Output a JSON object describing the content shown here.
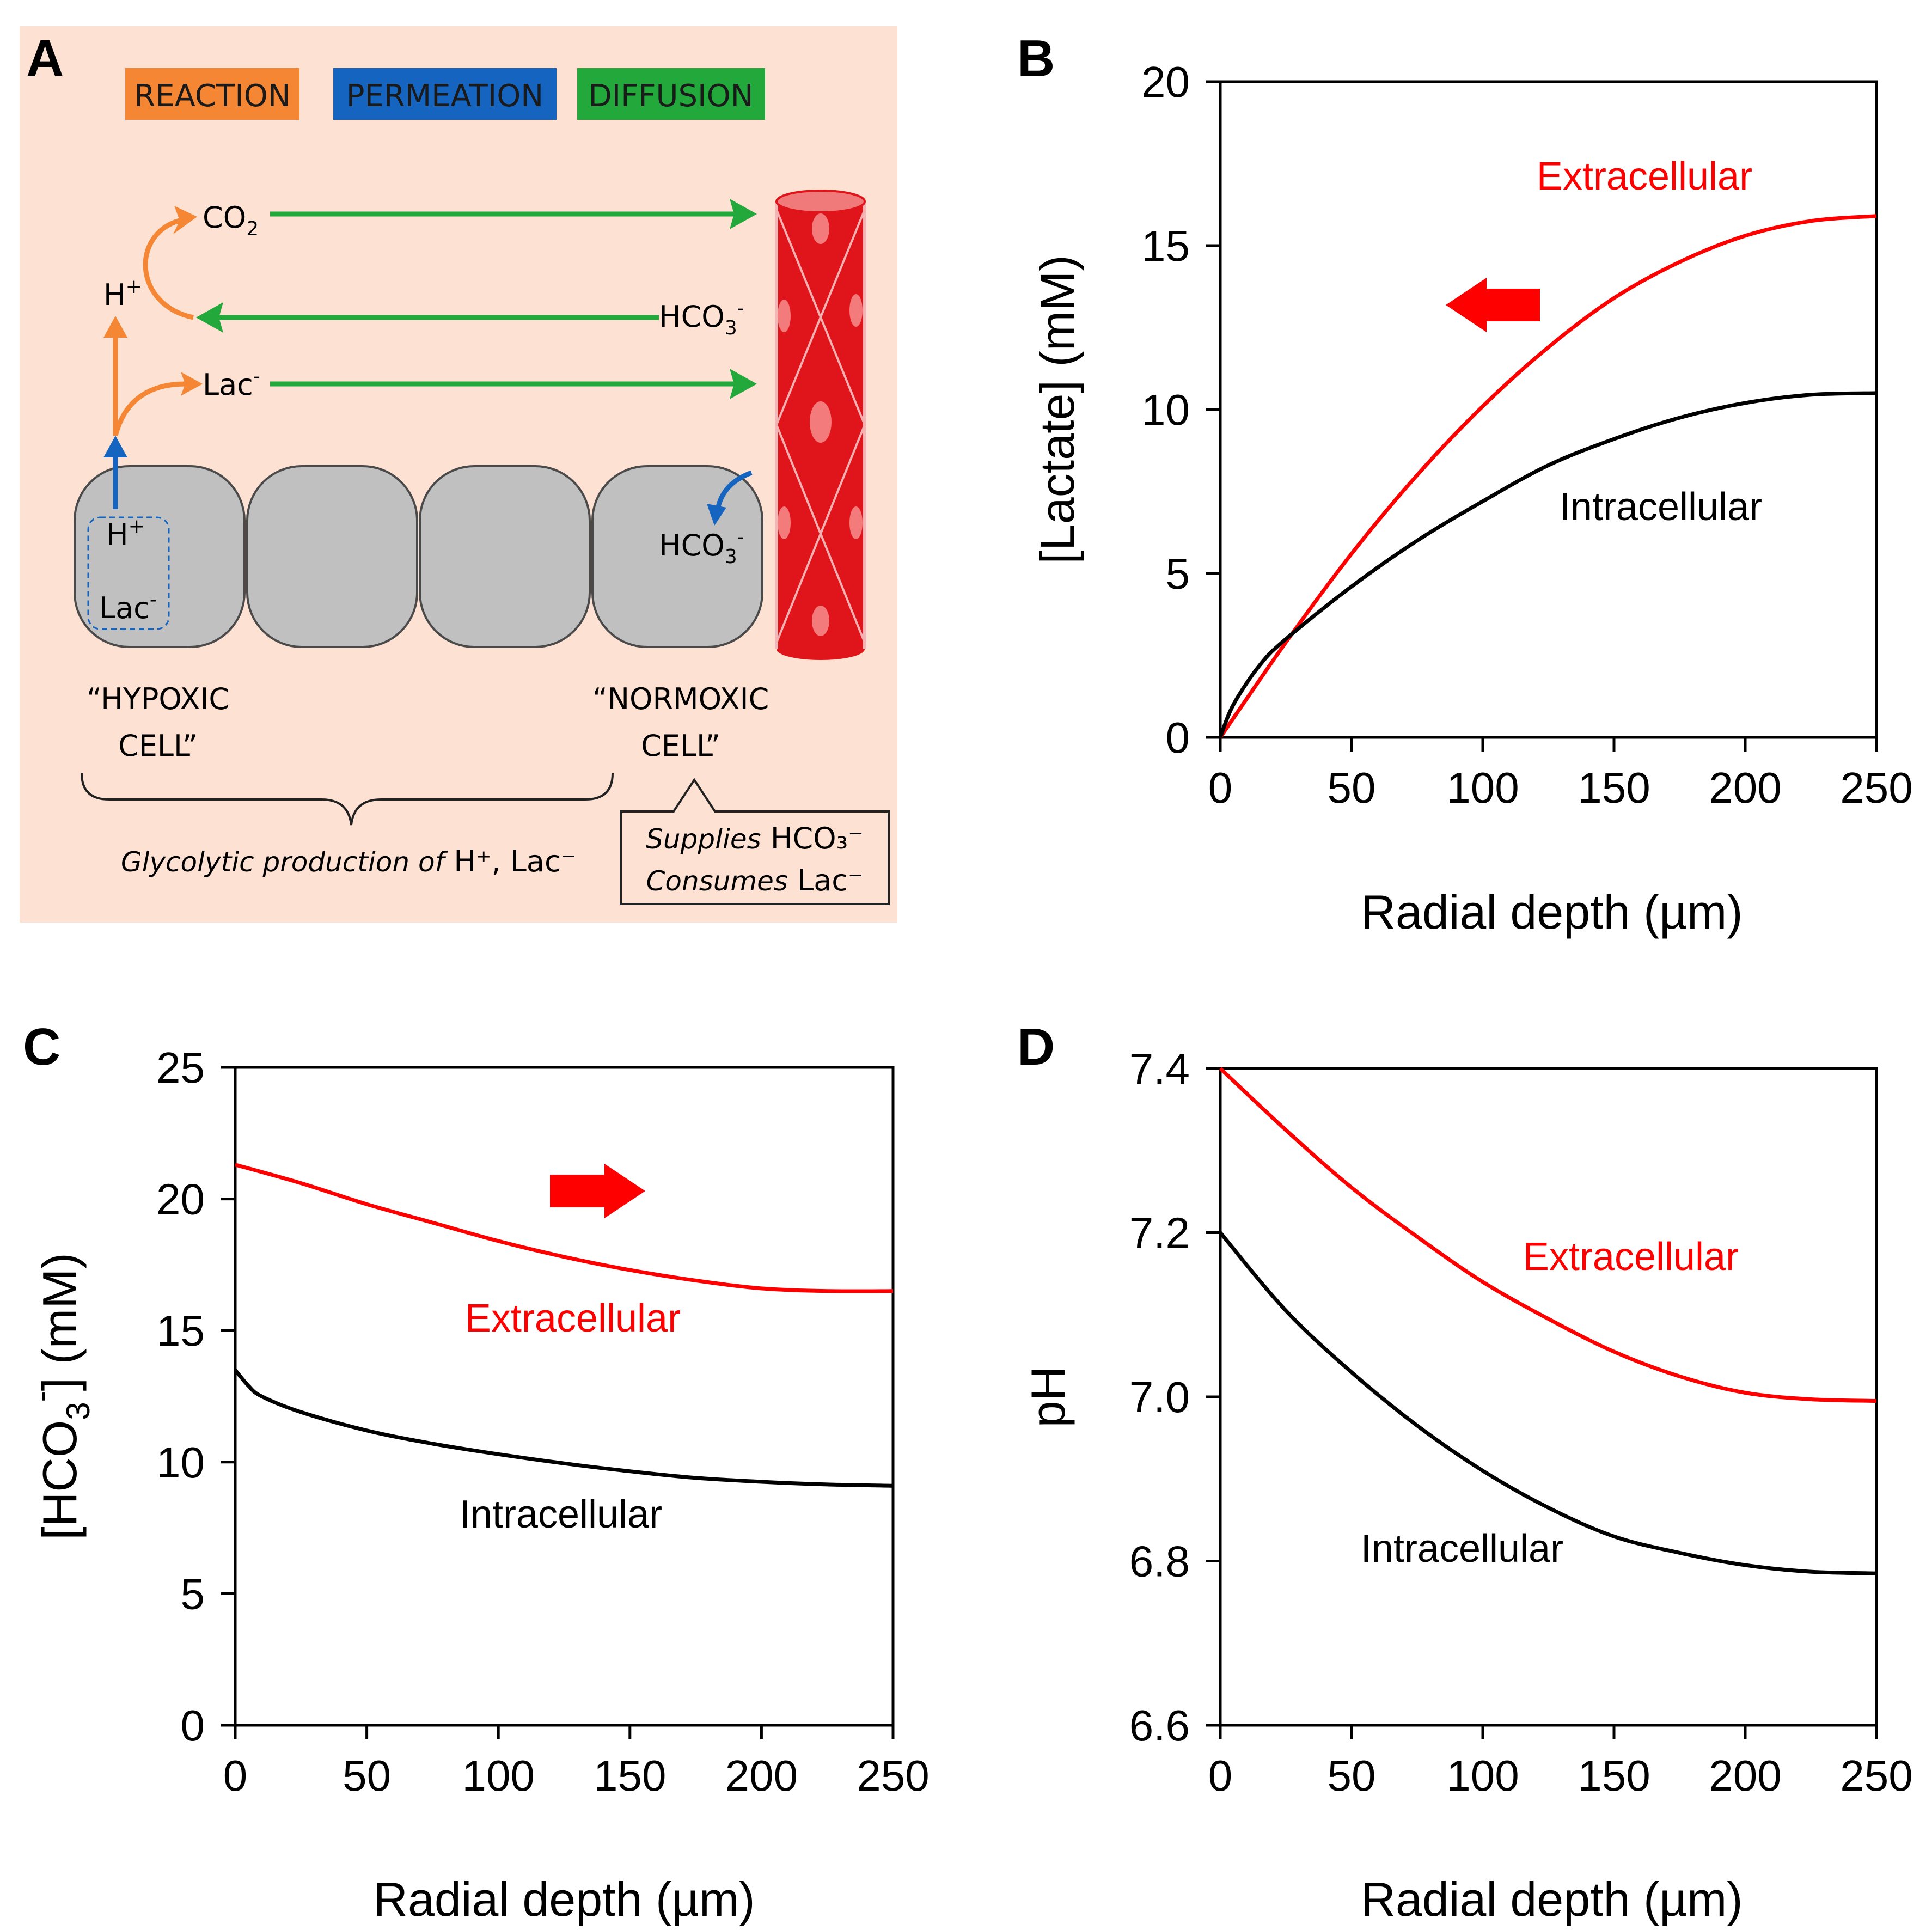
{
  "panel_letters": {
    "a": "A",
    "b": "B",
    "c": "C",
    "d": "D"
  },
  "schematic": {
    "legend": {
      "reaction": "REACTION",
      "permeation": "PERMEATION",
      "diffusion": "DIFFUSION"
    },
    "colors": {
      "reaction": "#f58634",
      "permeation": "#1565c0",
      "diffusion": "#23a83c",
      "background": "#fde1d2",
      "vessel": "#e0141b",
      "cell": "#c0c0c0"
    },
    "species": {
      "co2": "CO",
      "co2_sub": "2",
      "h_plus": "H",
      "h_plus_sup": "+",
      "lac": "Lac",
      "lac_sup": "-",
      "hco3": "HCO",
      "hco3_sub": "3",
      "hco3_sup": "-"
    },
    "hypoxic_label_1": "“HYPOXIC",
    "hypoxic_label_2": "CELL”",
    "normoxic_label_1": "“NORMOXIC",
    "normoxic_label_2": "CELL”",
    "glycolytic_italic": "Glycolytic production of",
    "glycolytic_rest": " H⁺, Lac⁻",
    "supplies_italic": "Supplies",
    "supplies_rest": " HCO₃⁻",
    "consumes_italic": "Consumes",
    "consumes_rest": " Lac⁻"
  },
  "chart_data": [
    {
      "id": "B",
      "type": "line",
      "xlabel": "Radial depth (µm)",
      "ylabel": "[Lactate] (mM)",
      "xlim": [
        0,
        250
      ],
      "ylim": [
        0,
        20
      ],
      "xticks": [
        0,
        50,
        100,
        150,
        200,
        250
      ],
      "yticks": [
        0,
        5,
        10,
        15,
        20
      ],
      "arrow_direction": "left",
      "series": [
        {
          "name": "Extracellular",
          "color": "#ff0000",
          "x": [
            0,
            25,
            50,
            75,
            100,
            125,
            150,
            175,
            200,
            225,
            250
          ],
          "y": [
            0,
            2.9,
            5.6,
            8.0,
            10.1,
            11.9,
            13.4,
            14.5,
            15.3,
            15.75,
            15.9
          ]
        },
        {
          "name": "Intracellular",
          "color": "#000000",
          "x": [
            0,
            5,
            15,
            25,
            50,
            75,
            100,
            125,
            150,
            175,
            200,
            225,
            250
          ],
          "y": [
            0,
            1.0,
            2.2,
            3.0,
            4.6,
            6.0,
            7.2,
            8.3,
            9.1,
            9.75,
            10.2,
            10.45,
            10.5
          ]
        }
      ]
    },
    {
      "id": "C",
      "type": "line",
      "xlabel": "Radial depth (µm)",
      "ylabel": "[HCO3-] (mM)",
      "ylabel_main": "[HCO",
      "ylabel_sub": "3",
      "ylabel_sup": "-",
      "ylabel_end": "] (mM)",
      "xlim": [
        0,
        250
      ],
      "ylim": [
        0,
        25
      ],
      "xticks": [
        0,
        50,
        100,
        150,
        200,
        250
      ],
      "yticks": [
        0,
        5,
        10,
        15,
        20,
        25
      ],
      "arrow_direction": "right",
      "series": [
        {
          "name": "Extracellular",
          "color": "#ff0000",
          "x": [
            0,
            25,
            50,
            75,
            100,
            125,
            150,
            175,
            200,
            225,
            250
          ],
          "y": [
            21.3,
            20.6,
            19.8,
            19.1,
            18.4,
            17.8,
            17.3,
            16.9,
            16.6,
            16.5,
            16.5
          ]
        },
        {
          "name": "Intracellular",
          "color": "#000000",
          "x": [
            0,
            5,
            10,
            25,
            50,
            75,
            100,
            125,
            150,
            175,
            200,
            225,
            250
          ],
          "y": [
            13.5,
            12.9,
            12.5,
            11.9,
            11.2,
            10.7,
            10.3,
            9.95,
            9.65,
            9.4,
            9.25,
            9.15,
            9.1
          ]
        }
      ]
    },
    {
      "id": "D",
      "type": "line",
      "xlabel": "Radial depth (µm)",
      "ylabel": "pH",
      "xlim": [
        0,
        250
      ],
      "ylim": [
        6.6,
        7.4
      ],
      "xticks": [
        0,
        50,
        100,
        150,
        200,
        250
      ],
      "yticks": [
        6.6,
        6.8,
        7.0,
        7.2,
        7.4
      ],
      "series": [
        {
          "name": "Extracellular",
          "color": "#ff0000",
          "x": [
            0,
            25,
            50,
            75,
            100,
            125,
            150,
            175,
            200,
            225,
            250
          ],
          "y": [
            7.4,
            7.325,
            7.255,
            7.195,
            7.14,
            7.095,
            7.055,
            7.025,
            7.005,
            6.997,
            6.995
          ]
        },
        {
          "name": "Intracellular",
          "color": "#000000",
          "x": [
            0,
            25,
            50,
            75,
            100,
            125,
            150,
            175,
            200,
            225,
            250
          ],
          "y": [
            7.2,
            7.105,
            7.03,
            6.965,
            6.91,
            6.865,
            6.83,
            6.81,
            6.795,
            6.787,
            6.785
          ]
        }
      ]
    }
  ]
}
